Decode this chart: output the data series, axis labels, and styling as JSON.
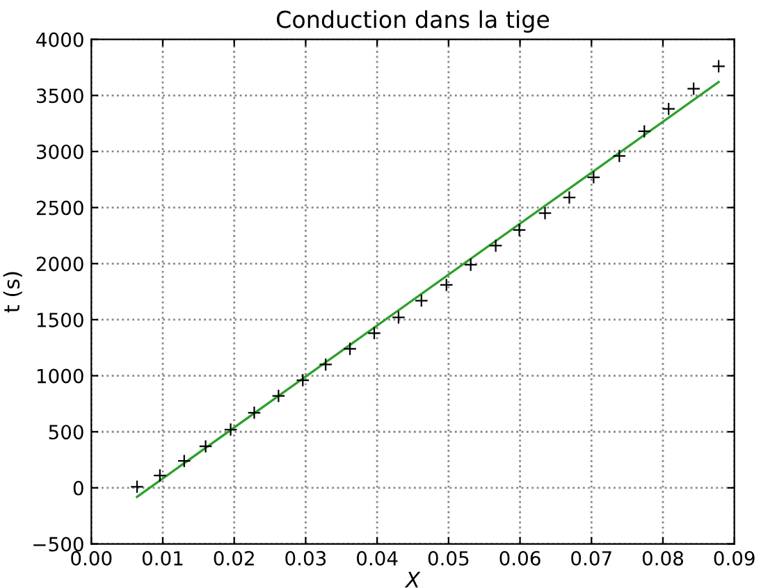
{
  "chart_data": {
    "type": "scatter",
    "title": "Conduction dans la tige",
    "xlabel": "X",
    "ylabel": "t (s)",
    "xlim": [
      0,
      0.09
    ],
    "xticks": [
      {
        "value": 0,
        "label": "0.00"
      },
      {
        "value": 0.01,
        "label": "0.01"
      },
      {
        "value": 0.02,
        "label": "0.02"
      },
      {
        "value": 0.03,
        "label": "0.03"
      },
      {
        "value": 0.04,
        "label": "0.04"
      },
      {
        "value": 0.05,
        "label": "0.05"
      },
      {
        "value": 0.06,
        "label": "0.06"
      },
      {
        "value": 0.07,
        "label": "0.07"
      },
      {
        "value": 0.08,
        "label": "0.08"
      },
      {
        "value": 0.09,
        "label": "0.09"
      }
    ],
    "ylim": [
      -500,
      4000
    ],
    "yticks": [
      {
        "value": -500,
        "label": "−500"
      },
      0,
      500,
      1000,
      1500,
      2000,
      2500,
      3000,
      3500,
      4000
    ],
    "grid": true,
    "series": [
      {
        "marker": "cross",
        "color": "#000000",
        "x": [
          0.0064,
          0.0096,
          0.013,
          0.016,
          0.0195,
          0.0228,
          0.0262,
          0.0296,
          0.0328,
          0.0362,
          0.0396,
          0.043,
          0.0462,
          0.0497,
          0.0531,
          0.0566,
          0.0599,
          0.0635,
          0.0669,
          0.0703,
          0.0739,
          0.0774,
          0.0808,
          0.0843,
          0.0878
        ],
        "values": [
          10,
          110,
          240,
          370,
          520,
          670,
          820,
          960,
          1100,
          1240,
          1380,
          1520,
          1670,
          1810,
          1990,
          2160,
          2300,
          2450,
          2590,
          2770,
          2960,
          3180,
          3380,
          3560,
          3760
        ]
      },
      {
        "type": "line",
        "color": "#2ca02c",
        "x": [
          0.0064,
          0.0878
        ],
        "values": [
          -80,
          3620
        ]
      }
    ]
  }
}
